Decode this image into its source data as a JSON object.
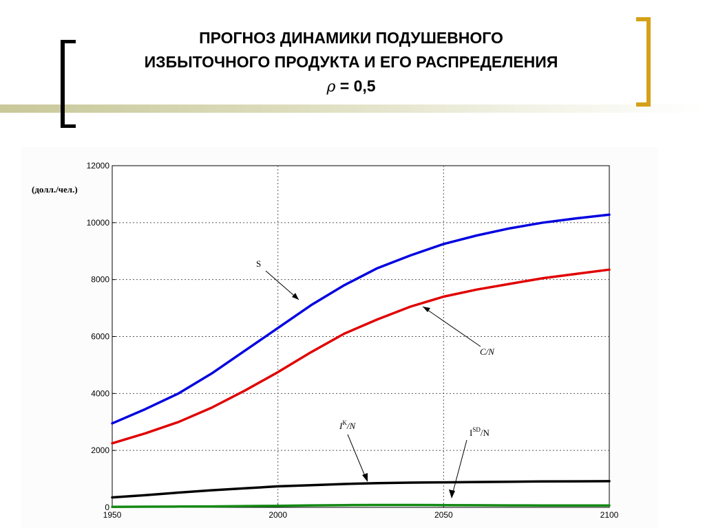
{
  "slide": {
    "title_line1": "ПРОГНОЗ ДИНАМИКИ ПОДУШЕВНОГО",
    "title_line2": "ИЗБЫТОЧНОГО ПРОДУКТА И ЕГО РАСПРЕДЕЛЕНИЯ",
    "rho_symbol": "ρ",
    "rho_value": "= 0,5"
  },
  "colors": {
    "bracket_left": "#000000",
    "bracket_right": "#d4a017",
    "S": "#0000e0",
    "C_N": "#e00000",
    "IK_N": "#000000",
    "ISD_N": "#138a13"
  },
  "chart_data": {
    "type": "line",
    "ylabel": "(долл./чел.)",
    "xlim": [
      1950,
      2100
    ],
    "ylim": [
      0,
      12000
    ],
    "xticks": [
      1950,
      2000,
      2050,
      2100
    ],
    "yticks": [
      0,
      2000,
      4000,
      6000,
      8000,
      10000,
      12000
    ],
    "grid": true,
    "x": [
      1950,
      1960,
      1970,
      1980,
      1990,
      2000,
      2010,
      2020,
      2030,
      2040,
      2050,
      2060,
      2070,
      2080,
      2090,
      2100
    ],
    "series": [
      {
        "name": "S",
        "color": "#0000e0",
        "values": [
          2950,
          3450,
          4000,
          4700,
          5500,
          6300,
          7100,
          7800,
          8400,
          8850,
          9250,
          9550,
          9800,
          10000,
          10150,
          10280
        ]
      },
      {
        "name": "C/N",
        "color": "#e00000",
        "values": [
          2250,
          2600,
          3000,
          3500,
          4100,
          4750,
          5450,
          6100,
          6600,
          7050,
          7400,
          7650,
          7850,
          8050,
          8200,
          8350
        ]
      },
      {
        "name": "I^K/N",
        "color": "#000000",
        "values": [
          350,
          430,
          520,
          600,
          670,
          740,
          780,
          820,
          850,
          870,
          880,
          890,
          900,
          910,
          915,
          920
        ]
      },
      {
        "name": "I^SD/N",
        "color": "#138a13",
        "values": [
          20,
          25,
          30,
          35,
          45,
          55,
          70,
          80,
          85,
          85,
          80,
          75,
          70,
          68,
          66,
          65
        ]
      }
    ],
    "annotations": {
      "S": "S",
      "C_N": "C/N",
      "IK_base": "I",
      "IK_sup": "K",
      "IK_rest": "/N",
      "ISD_base": "I",
      "ISD_sup": "SD",
      "ISD_rest": "/N"
    }
  }
}
